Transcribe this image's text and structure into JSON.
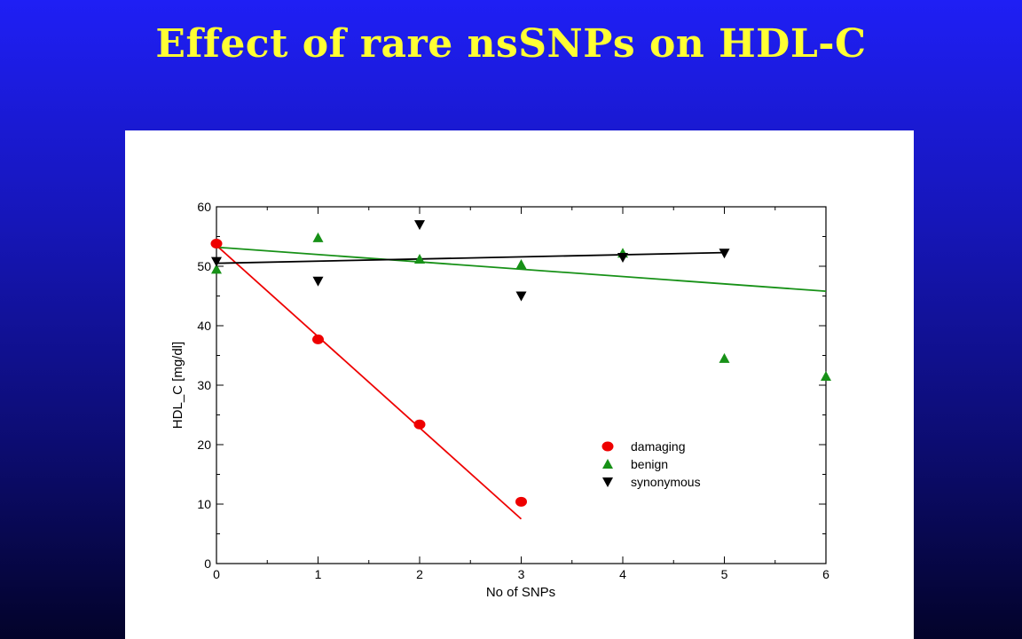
{
  "slide": {
    "title": "Effect of rare nsSNPs on HDL-C"
  },
  "chart_data": {
    "type": "scatter",
    "title": "",
    "xlabel": "No of SNPs",
    "ylabel": "HDL_C [mg/dl]",
    "xlim": [
      0,
      6
    ],
    "ylim": [
      0,
      60
    ],
    "xticks": [
      0,
      1,
      2,
      3,
      4,
      5,
      6
    ],
    "yticks": [
      0,
      10,
      20,
      30,
      40,
      50,
      60
    ],
    "grid": false,
    "legend_position": "lower-right",
    "series": [
      {
        "name": "damaging",
        "marker": "circle",
        "color": "#ee0000",
        "points": [
          [
            0,
            53.8
          ],
          [
            1,
            37.7
          ],
          [
            2,
            23.4
          ],
          [
            3,
            10.4
          ]
        ],
        "fit": [
          [
            0,
            53.5
          ],
          [
            3,
            7.5
          ]
        ]
      },
      {
        "name": "benign",
        "marker": "triangle-up",
        "color": "#179117",
        "points": [
          [
            0,
            49.5
          ],
          [
            1,
            54.8
          ],
          [
            2,
            51.2
          ],
          [
            3,
            50.3
          ],
          [
            4,
            52.2
          ],
          [
            5,
            34.5
          ],
          [
            6,
            31.5
          ]
        ],
        "fit": [
          [
            0,
            53.2
          ],
          [
            6,
            45.8
          ]
        ]
      },
      {
        "name": "synonymous",
        "marker": "triangle-down",
        "color": "#000000",
        "points": [
          [
            0,
            50.8
          ],
          [
            1,
            47.5
          ],
          [
            2,
            57.0
          ],
          [
            3,
            45.0
          ],
          [
            4,
            51.5
          ],
          [
            5,
            52.2
          ]
        ],
        "fit": [
          [
            0,
            50.5
          ],
          [
            5,
            52.3
          ]
        ]
      }
    ]
  }
}
